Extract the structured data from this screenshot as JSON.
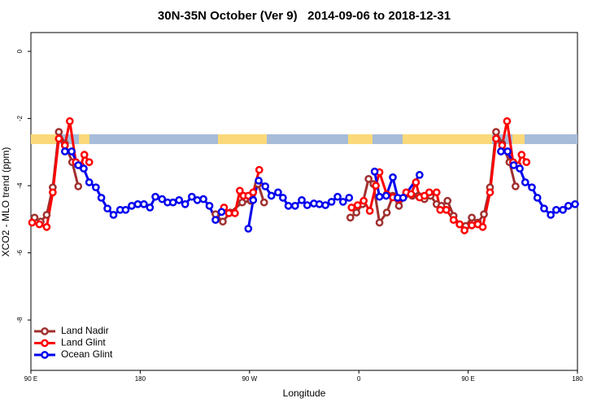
{
  "chart_data": {
    "type": "line",
    "title": "30N-35N October (Ver 9)   2014-09-06 to 2018-12-31",
    "x_label": "Longitude",
    "y_label": "XCO2 - MLO trend (ppm)",
    "xlim": [
      90,
      540
    ],
    "xticks": [
      {
        "value": 90,
        "label": "90 E"
      },
      180,
      {
        "value": 270,
        "label": "90 W"
      },
      {
        "value": 360,
        "label": "0"
      },
      {
        "value": 450,
        "label": "90 E"
      },
      {
        "value": 540,
        "label": "180"
      }
    ],
    "ylim": [
      -9.5,
      0.56
    ],
    "yticks": [
      0,
      -2,
      -4,
      -6,
      -8
    ],
    "legend": "bottom-left",
    "series": [
      {
        "name": "Land Nadir",
        "color": "#a0302f",
        "x": [
          93,
          98,
          103,
          108,
          113,
          118,
          124,
          129,
          null,
          242,
          248,
          254,
          264,
          271,
          277,
          282,
          null,
          353,
          358,
          363,
          368,
          372,
          377,
          383,
          388,
          393,
          399,
          404,
          409,
          414,
          419,
          424,
          428,
          433,
          438,
          443,
          448,
          453,
          458,
          463,
          468,
          473,
          478,
          484,
          489
        ],
        "values": [
          -4.95,
          -5.07,
          -4.87,
          -4.05,
          -2.4,
          -2.75,
          -3.3,
          -4.02,
          null,
          -4.85,
          -5.07,
          -4.8,
          -4.5,
          -4.45,
          -3.95,
          -4.5,
          null,
          -4.95,
          -4.8,
          -4.55,
          -3.8,
          -3.95,
          -5.1,
          -4.8,
          -4.3,
          -4.6,
          -4.25,
          -4.3,
          -4.3,
          -4.4,
          -4.3,
          -4.55,
          -4.6,
          -4.45,
          -4.9,
          -5.15,
          -5.2,
          -4.95,
          -5.1,
          -4.85,
          -4.05,
          -2.4,
          -2.75,
          -3.3,
          -4.02
        ]
      },
      {
        "name": "Land Glint",
        "color": "#ff0000",
        "x": [
          91,
          97,
          103,
          108,
          113,
          118,
          122,
          127,
          131,
          134,
          138,
          null,
          249,
          253,
          258,
          262,
          265,
          269,
          273,
          278,
          null,
          354,
          359,
          364,
          369,
          374,
          377,
          383,
          388,
          393,
          399,
          403,
          407,
          410,
          414,
          418,
          424,
          427,
          432,
          438,
          443,
          447,
          453,
          458,
          462,
          468,
          473,
          478,
          482,
          487,
          491,
          494,
          498
        ],
        "values": [
          -5.1,
          -5.15,
          -5.23,
          -4.2,
          -2.6,
          -2.8,
          -2.08,
          -3.3,
          -3.4,
          -3.08,
          -3.3,
          null,
          -4.65,
          -4.82,
          -4.82,
          -4.15,
          -4.3,
          -4.3,
          -4.2,
          -3.53,
          null,
          -4.65,
          -4.58,
          -4.45,
          -4.75,
          -4.0,
          -3.6,
          -4.26,
          -4.35,
          -4.4,
          -4.2,
          -4.25,
          -3.9,
          -4.35,
          -4.3,
          -4.2,
          -4.2,
          -4.72,
          -4.72,
          -5.02,
          -5.15,
          -5.33,
          -5.18,
          -5.15,
          -5.23,
          -4.2,
          -2.6,
          -2.8,
          -2.08,
          -3.3,
          -3.4,
          -3.08,
          -3.3
        ]
      },
      {
        "name": "Ocean Glint",
        "color": "#0000ee",
        "x": [
          118,
          123.5,
          129,
          133.5,
          138,
          143.5,
          148,
          153,
          158,
          163.5,
          168,
          173,
          178,
          183,
          188,
          192.5,
          198,
          202.5,
          207,
          212,
          217,
          222.5,
          227,
          232,
          237,
          242,
          247,
          null,
          269,
          273,
          277.5,
          283,
          288,
          293.5,
          297.5,
          302,
          307.5,
          313,
          317.5,
          323,
          327.5,
          332.5,
          337.5,
          342.5,
          347,
          352,
          null,
          373,
          377,
          382.5,
          388,
          392,
          396.5,
          410,
          null,
          477,
          482.5,
          487.5,
          492.5,
          497,
          502.5,
          507,
          512.5,
          518,
          522.5,
          528,
          532.5,
          538
        ],
        "values": [
          -2.98,
          -2.98,
          -3.39,
          -3.49,
          -3.9,
          -4.05,
          -4.36,
          -4.68,
          -4.87,
          -4.72,
          -4.72,
          -4.6,
          -4.55,
          -4.55,
          -4.65,
          -4.33,
          -4.4,
          -4.5,
          -4.5,
          -4.43,
          -4.55,
          -4.33,
          -4.43,
          -4.4,
          -4.6,
          -5.02,
          -4.78,
          null,
          -5.28,
          -4.43,
          -3.85,
          -4.02,
          -4.3,
          -4.2,
          -4.36,
          -4.6,
          -4.6,
          -4.43,
          -4.58,
          -4.53,
          -4.55,
          -4.58,
          -4.48,
          -4.33,
          -4.48,
          -4.36,
          null,
          -3.58,
          -4.33,
          -4.3,
          -3.75,
          -4.36,
          -4.36,
          -3.68,
          null,
          -2.98,
          -2.98,
          -3.39,
          -3.49,
          -3.9,
          -4.05,
          -4.36,
          -4.68,
          -4.87,
          -4.72,
          -4.72,
          -4.6,
          -4.55
        ]
      }
    ]
  }
}
